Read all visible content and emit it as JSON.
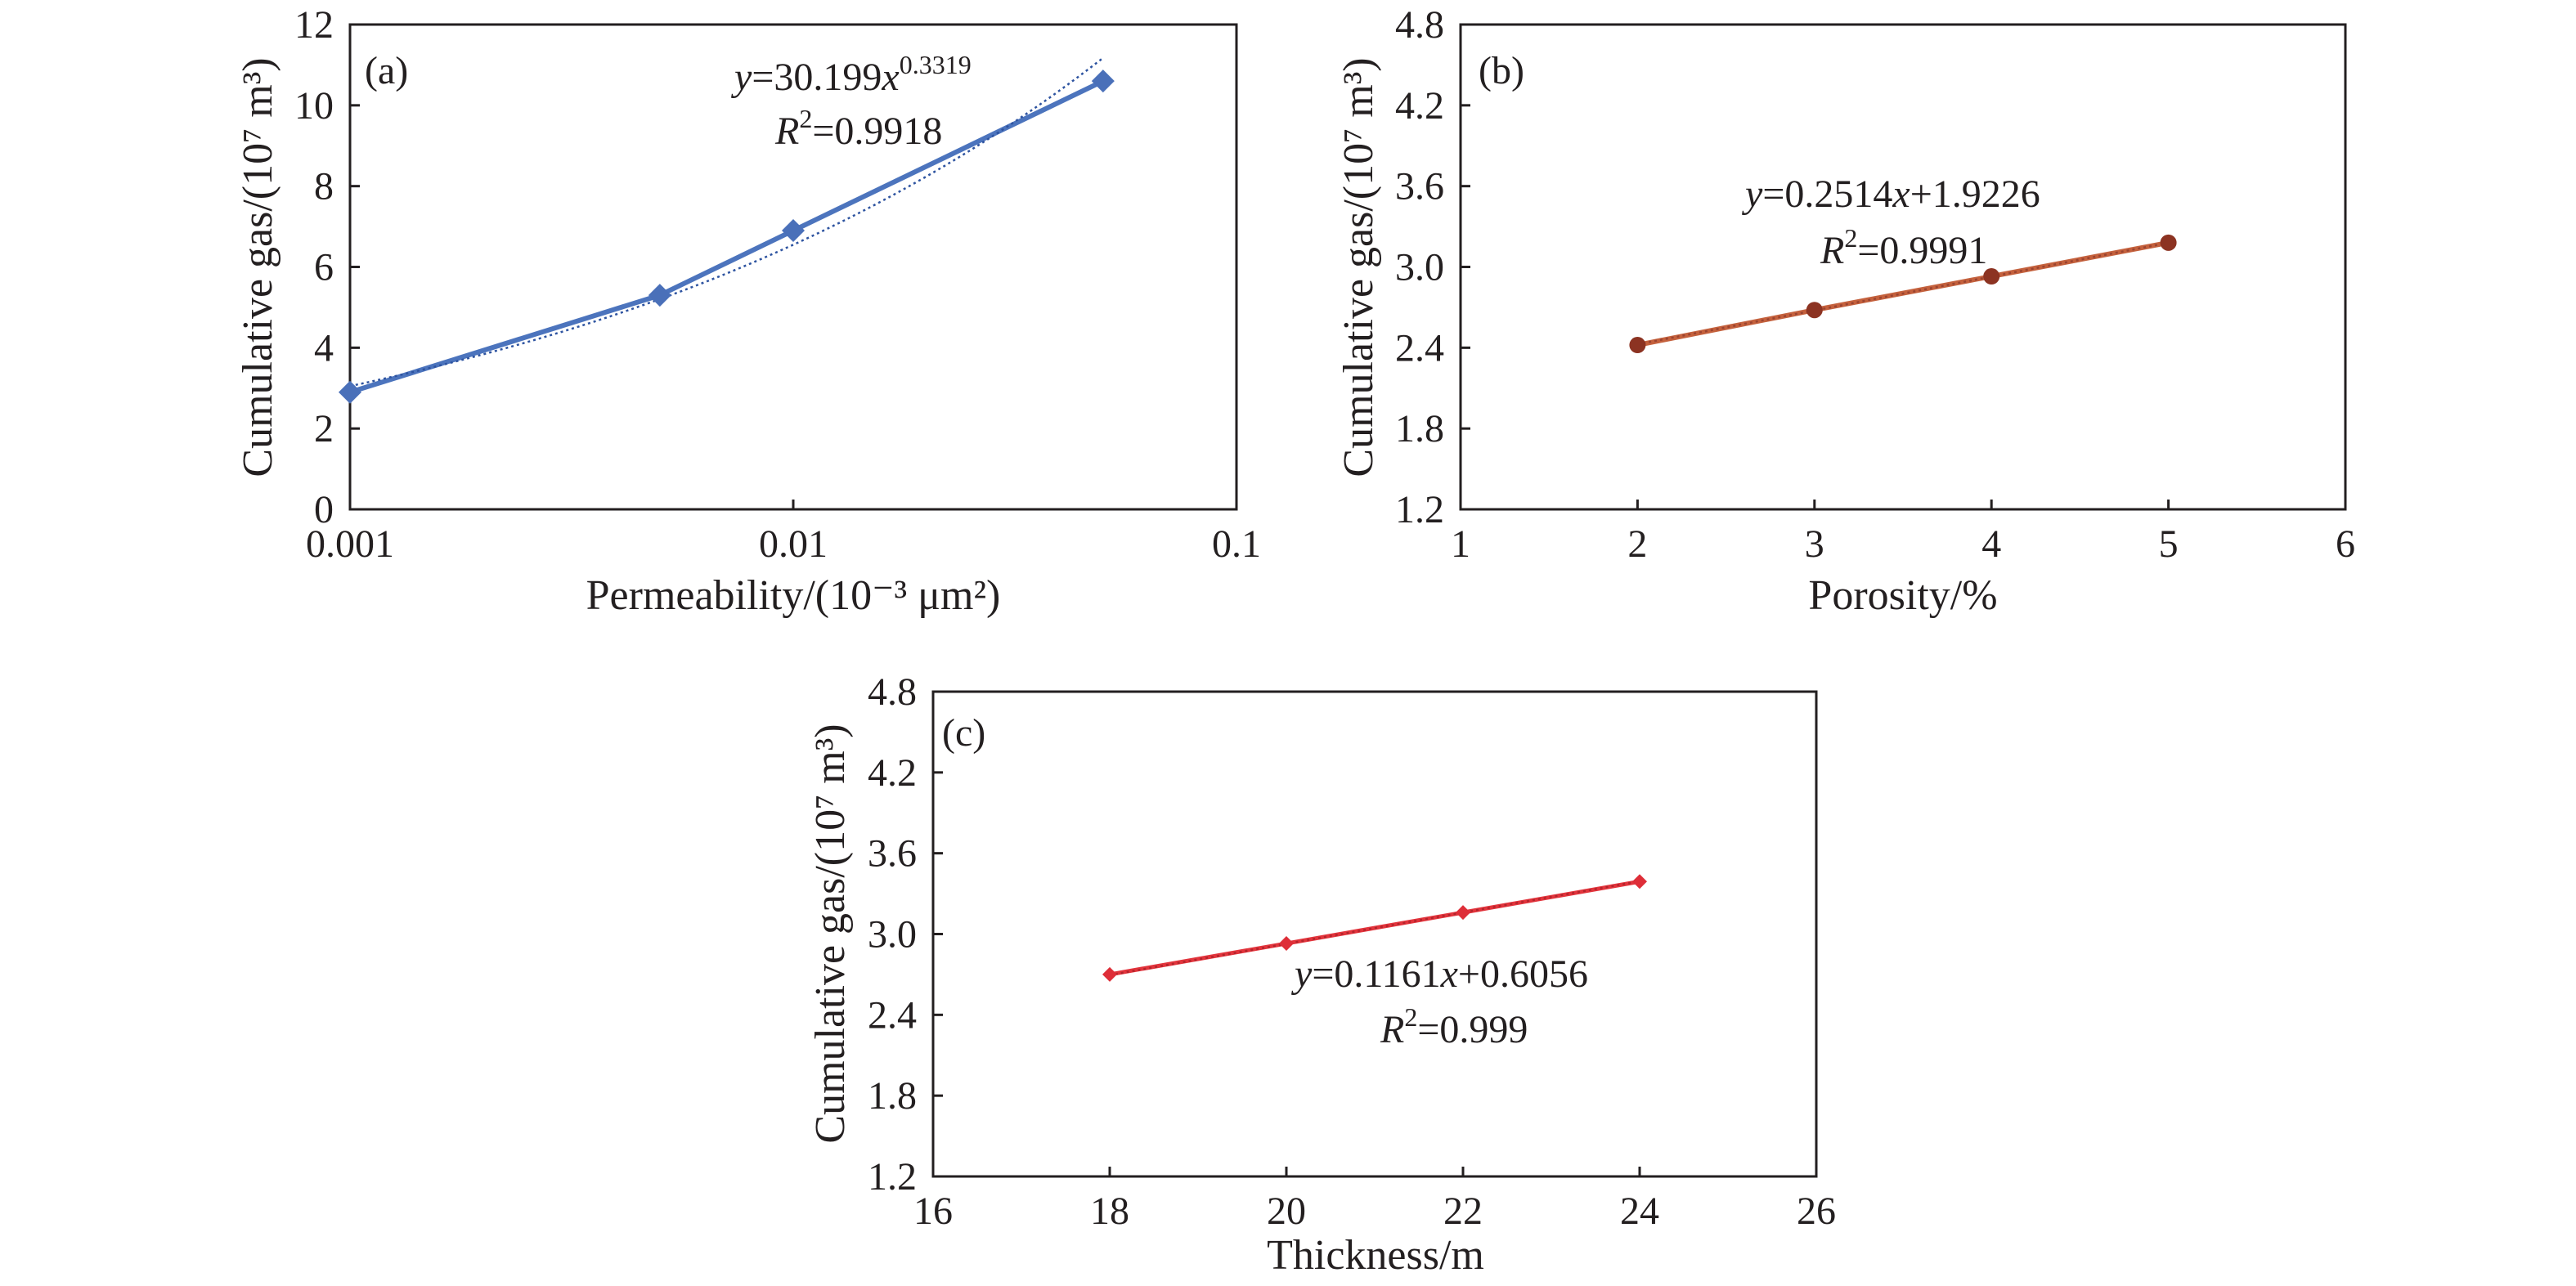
{
  "chart_data": [
    {
      "type": "line",
      "panel_label": "(a)",
      "xlabel": "Permeability/(10⁻³ μm²)",
      "ylabel": "Cumulative gas/(10⁷ m³)",
      "xscale": "log",
      "xlim": [
        0.001,
        0.1
      ],
      "ylim": [
        0,
        12
      ],
      "x_ticks": [
        "0.001",
        "0.01",
        "0.1"
      ],
      "y_ticks": [
        "0",
        "2",
        "4",
        "6",
        "8",
        "10",
        "12"
      ],
      "grid": false,
      "series": [
        {
          "x": [
            0.001,
            0.005,
            0.01,
            0.05
          ],
          "y": [
            2.9,
            5.3,
            6.9,
            10.6
          ]
        }
      ],
      "fit": {
        "coefficient": 30.199,
        "exponent": 0.3319
      },
      "equation": {
        "lhs": "y",
        "coef": "=30.199",
        "var": "x",
        "power": "0.3319"
      },
      "r2": {
        "sym": "R",
        "sup": "2",
        "value": "=0.9918"
      },
      "colors": {
        "line": "#4c74bd",
        "marker": "#4a70b9",
        "fit": "#2d53a0"
      }
    },
    {
      "type": "line",
      "panel_label": "(b)",
      "xlabel": "Porosity/%",
      "ylabel": "Cumulative gas/(10⁷ m³)",
      "xscale": "linear",
      "xlim": [
        1,
        6
      ],
      "ylim": [
        1.2,
        4.8
      ],
      "x_ticks": [
        "1",
        "2",
        "3",
        "4",
        "5",
        "6"
      ],
      "y_ticks": [
        "1.2",
        "1.8",
        "2.4",
        "3.0",
        "3.6",
        "4.2",
        "4.8"
      ],
      "grid": false,
      "series": [
        {
          "x": [
            2,
            3,
            4,
            5
          ],
          "y": [
            2.42,
            2.68,
            2.93,
            3.18
          ]
        }
      ],
      "fit": {
        "slope": 0.2514,
        "intercept": 1.9226
      },
      "equation": {
        "lhs": "y",
        "coef": "=0.2514",
        "var": "x",
        "rest": "+1.9226"
      },
      "r2": {
        "sym": "R",
        "sup": "2",
        "value": "=0.9991"
      },
      "colors": {
        "line": "#c4613d",
        "marker": "#8c3322",
        "fit": "#9a4330"
      }
    },
    {
      "type": "line",
      "panel_label": "(c)",
      "xlabel": "Thickness/m",
      "ylabel": "Cumulative gas/(10⁷ m³)",
      "xscale": "linear",
      "xlim": [
        16,
        26
      ],
      "ylim": [
        1.2,
        4.8
      ],
      "x_ticks": [
        "16",
        "18",
        "20",
        "22",
        "24",
        "26"
      ],
      "y_ticks": [
        "1.2",
        "1.8",
        "2.4",
        "3.0",
        "3.6",
        "4.2",
        "4.8"
      ],
      "grid": false,
      "series": [
        {
          "x": [
            18,
            20,
            22,
            24
          ],
          "y": [
            2.7,
            2.93,
            3.16,
            3.39
          ]
        }
      ],
      "fit": {
        "slope": 0.1161,
        "intercept": 0.6056
      },
      "equation": {
        "lhs": "y",
        "coef": "=0.1161",
        "var": "x",
        "rest": "+0.6056"
      },
      "r2": {
        "sym": "R",
        "sup": "2",
        "value": "=0.999"
      },
      "colors": {
        "line": "#e2343c",
        "marker": "#de2e38",
        "fit": "#b3242c"
      }
    }
  ]
}
